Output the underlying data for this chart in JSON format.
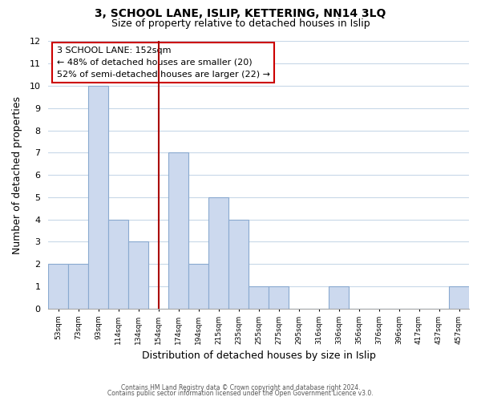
{
  "title1": "3, SCHOOL LANE, ISLIP, KETTERING, NN14 3LQ",
  "title2": "Size of property relative to detached houses in Islip",
  "xlabel": "Distribution of detached houses by size in Islip",
  "ylabel": "Number of detached properties",
  "bar_labels": [
    "53sqm",
    "73sqm",
    "93sqm",
    "114sqm",
    "134sqm",
    "154sqm",
    "174sqm",
    "194sqm",
    "215sqm",
    "235sqm",
    "255sqm",
    "275sqm",
    "295sqm",
    "316sqm",
    "336sqm",
    "356sqm",
    "376sqm",
    "396sqm",
    "417sqm",
    "437sqm",
    "457sqm"
  ],
  "bar_values": [
    2,
    2,
    10,
    4,
    3,
    0,
    7,
    2,
    5,
    4,
    1,
    1,
    0,
    0,
    1,
    0,
    0,
    0,
    0,
    0,
    1
  ],
  "bar_color": "#ccd9ee",
  "bar_edge_color": "#8aaad0",
  "ylim": [
    0,
    12
  ],
  "yticks": [
    0,
    1,
    2,
    3,
    4,
    5,
    6,
    7,
    8,
    9,
    10,
    11,
    12
  ],
  "property_line_idx": 5,
  "property_line_color": "#aa0000",
  "annotation_title": "3 SCHOOL LANE: 152sqm",
  "annotation_line1": "← 48% of detached houses are smaller (20)",
  "annotation_line2": "52% of semi-detached houses are larger (22) →",
  "annotation_box_color": "#ffffff",
  "annotation_box_edge": "#cc0000",
  "footer1": "Contains HM Land Registry data © Crown copyright and database right 2024.",
  "footer2": "Contains public sector information licensed under the Open Government Licence v3.0.",
  "background_color": "#ffffff",
  "grid_color": "#c8d8e8"
}
